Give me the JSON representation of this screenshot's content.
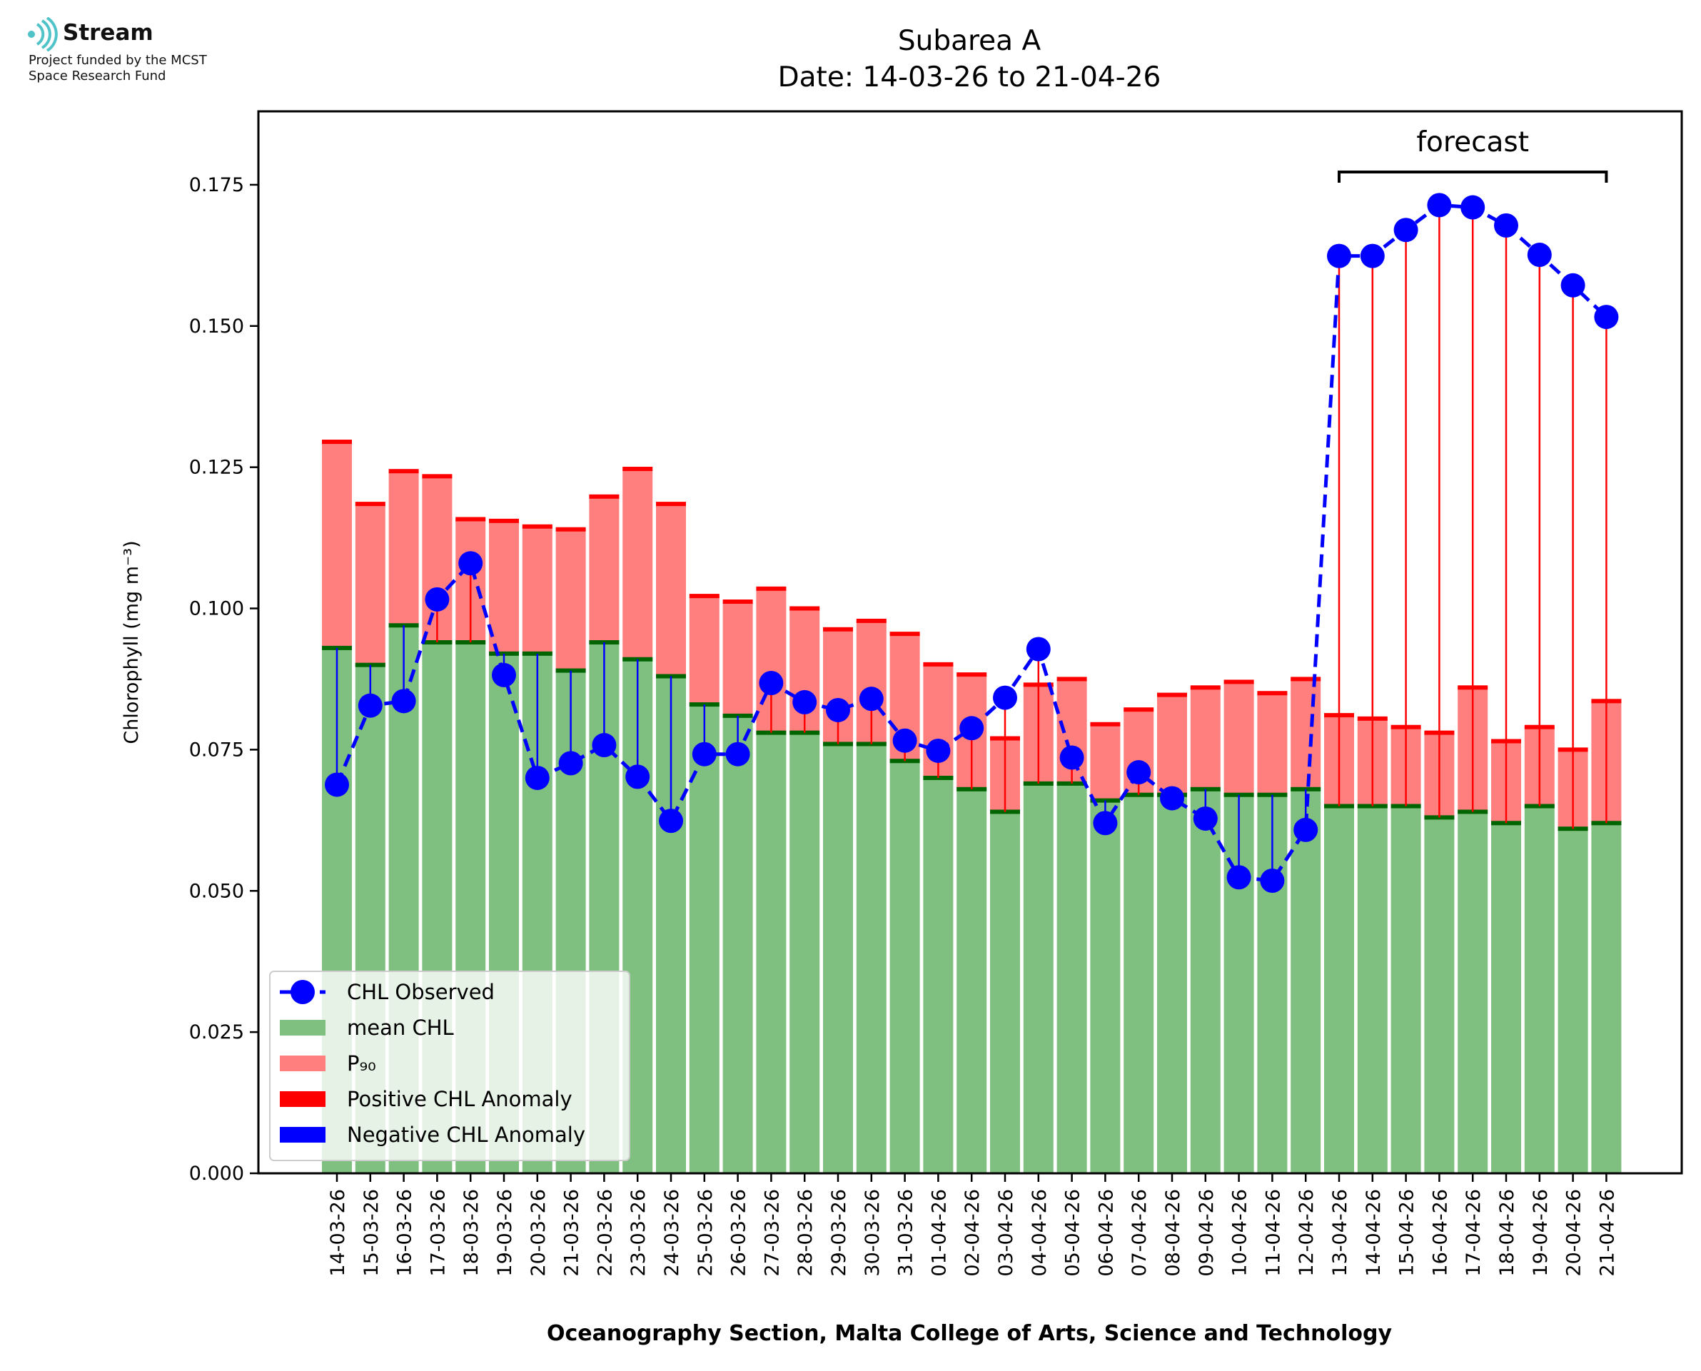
{
  "logo": {
    "name": "Stream",
    "line1": "Project funded by the MCST",
    "line2": "Space Research Fund",
    "color": "#4fc3c8"
  },
  "chart_data": {
    "type": "bar",
    "title": "Subarea A",
    "subtitle": "Date: 14-03-26 to 21-04-26",
    "xlabel": "Oceanography Section, Malta College of Arts, Science and Technology",
    "ylabel": "Chlorophyll (mg m⁻³)",
    "ylim": [
      0,
      0.188
    ],
    "yticks": [
      "0.000",
      "0.025",
      "0.050",
      "0.075",
      "0.100",
      "0.125",
      "0.150",
      "0.175"
    ],
    "grid": false,
    "legend_position": "lower-left",
    "annotation": "forecast",
    "forecast_range": [
      "13-04-26",
      "21-04-26"
    ],
    "categories": [
      "14-03-26",
      "15-03-26",
      "16-03-26",
      "17-03-26",
      "18-03-26",
      "19-03-26",
      "20-03-26",
      "21-03-26",
      "22-03-26",
      "23-03-26",
      "24-03-26",
      "25-03-26",
      "26-03-26",
      "27-03-26",
      "28-03-26",
      "29-03-26",
      "30-03-26",
      "31-03-26",
      "01-04-26",
      "02-04-26",
      "03-04-26",
      "04-04-26",
      "05-04-26",
      "06-04-26",
      "07-04-26",
      "08-04-26",
      "09-04-26",
      "10-04-26",
      "11-04-26",
      "12-04-26",
      "13-04-26",
      "14-04-26",
      "15-04-26",
      "16-04-26",
      "17-04-26",
      "18-04-26",
      "19-04-26",
      "20-04-26",
      "21-04-26"
    ],
    "series": [
      {
        "name": "mean CHL",
        "color": "#7fbf7f",
        "values": [
          0.093,
          0.09,
          0.097,
          0.094,
          0.094,
          0.092,
          0.092,
          0.089,
          0.094,
          0.091,
          0.088,
          0.083,
          0.081,
          0.078,
          0.078,
          0.076,
          0.076,
          0.073,
          0.07,
          0.068,
          0.064,
          0.069,
          0.069,
          0.066,
          0.067,
          0.067,
          0.068,
          0.067,
          0.067,
          0.068,
          0.065,
          0.065,
          0.065,
          0.063,
          0.064,
          0.062,
          0.065,
          0.061,
          0.062
        ]
      },
      {
        "name": "P₉₀",
        "color": "#ff7f7f",
        "values": [
          0.1295,
          0.1185,
          0.1243,
          0.1234,
          0.1158,
          0.1155,
          0.1145,
          0.114,
          0.1198,
          0.1247,
          0.1185,
          0.1022,
          0.1012,
          0.1035,
          0.1,
          0.0963,
          0.0978,
          0.0955,
          0.0901,
          0.0883,
          0.077,
          0.0865,
          0.0875,
          0.0795,
          0.0821,
          0.0847,
          0.086,
          0.087,
          0.085,
          0.0875,
          0.0811,
          0.0805,
          0.079,
          0.078,
          0.086,
          0.0765,
          0.079,
          0.075,
          0.0836
        ]
      },
      {
        "name": "CHL Observed",
        "color": "#0000ff",
        "values": [
          0.0688,
          0.0828,
          0.0836,
          0.1016,
          0.108,
          0.0882,
          0.07,
          0.0726,
          0.0758,
          0.0702,
          0.0624,
          0.0742,
          0.0742,
          0.0868,
          0.0834,
          0.082,
          0.084,
          0.0766,
          0.0748,
          0.0788,
          0.0842,
          0.0928,
          0.0736,
          0.062,
          0.071,
          0.0664,
          0.0628,
          0.0524,
          0.0518,
          0.0608,
          0.1624,
          0.1624,
          0.167,
          0.1714,
          0.171,
          0.1678,
          0.1626,
          0.1572,
          0.1516
        ]
      }
    ],
    "legend": [
      "CHL Observed",
      "mean CHL",
      "P₉₀",
      "Positive CHL Anomaly",
      "Negative CHL Anomaly"
    ],
    "colors": {
      "positive_anomaly": "#ff0000",
      "negative_anomaly": "#0000ff",
      "mean_cap": "#006400"
    }
  }
}
